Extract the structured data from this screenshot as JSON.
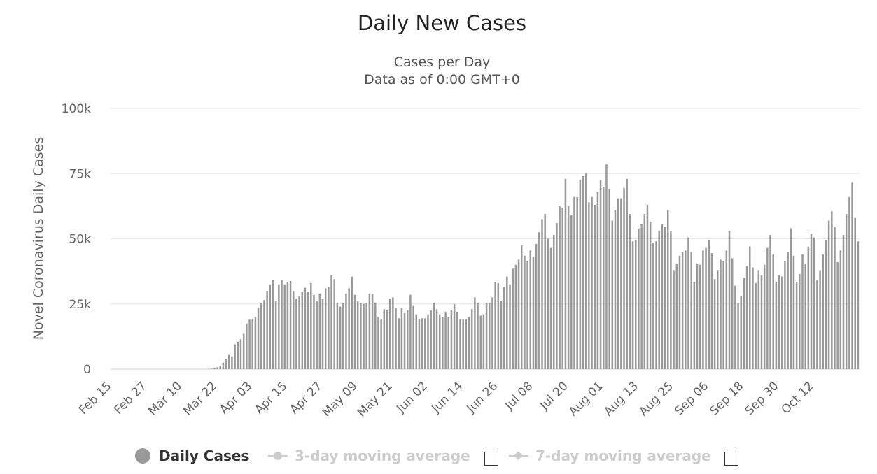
{
  "chart_data": {
    "type": "bar",
    "title": "Daily New Cases",
    "subtitle": [
      "Cases per Day",
      "Data as of 0:00 GMT+0"
    ],
    "ylabel": "Novel Coronavirus Daily Cases",
    "xlabel": "",
    "ylim": [
      0,
      100000
    ],
    "y_ticks": [
      0,
      25000,
      50000,
      75000,
      100000
    ],
    "y_tick_labels": [
      "0",
      "25k",
      "50k",
      "75k",
      "100k"
    ],
    "x_tick_labels": [
      "Feb 15",
      "Feb 27",
      "Mar 10",
      "Mar 22",
      "Apr 03",
      "Apr 15",
      "Apr 27",
      "May 09",
      "May 21",
      "Jun 02",
      "Jun 14",
      "Jun 26",
      "Jul 08",
      "Jul 20",
      "Aug 01",
      "Aug 13",
      "Aug 25",
      "Sep 06",
      "Sep 18",
      "Sep 30",
      "Oct 12"
    ],
    "x_start": "Feb 15",
    "x_end": "Oct 17",
    "grid": true,
    "bar_color": "#999999",
    "series": [
      {
        "name": "Daily Cases",
        "values": [
          0,
          0,
          0,
          0,
          0,
          0,
          0,
          0,
          0,
          0,
          0,
          0,
          0,
          0,
          0,
          0,
          0,
          0,
          0,
          0,
          0,
          0,
          0,
          0,
          0,
          0,
          0,
          0,
          0,
          0,
          0,
          0,
          0,
          100,
          200,
          500,
          700,
          1300,
          2500,
          4000,
          5500,
          4800,
          9500,
          10500,
          11500,
          13500,
          17500,
          19000,
          19000,
          20000,
          23500,
          25500,
          26500,
          30000,
          32500,
          34200,
          26000,
          32500,
          34200,
          32500,
          33500,
          33800,
          30000,
          27000,
          28000,
          29500,
          31200,
          29500,
          33000,
          28500,
          26000,
          29000,
          27000,
          31000,
          31500,
          36000,
          34500,
          25500,
          24000,
          25500,
          29000,
          31000,
          35500,
          28500,
          26000,
          25500,
          25000,
          25500,
          29000,
          28800,
          25500,
          20000,
          19000,
          23000,
          22500,
          27000,
          27500,
          23500,
          19500,
          23500,
          21500,
          22500,
          28500,
          24500,
          21000,
          19000,
          19500,
          19500,
          21000,
          22500,
          25500,
          23000,
          21000,
          20000,
          22000,
          20000,
          22500,
          25000,
          22000,
          19000,
          19000,
          19000,
          20000,
          23000,
          27500,
          25500,
          20500,
          21000,
          25500,
          25500,
          27500,
          33500,
          33000,
          26000,
          31500,
          35500,
          32500,
          38500,
          40000,
          42000,
          47500,
          43500,
          41500,
          45500,
          43000,
          48000,
          52500,
          57500,
          59500,
          50000,
          46500,
          51500,
          56000,
          62500,
          62000,
          73000,
          62500,
          59000,
          66000,
          66000,
          72500,
          74000,
          75000,
          64000,
          66000,
          63000,
          68000,
          72500,
          70000,
          78500,
          69000,
          57000,
          61000,
          65500,
          65500,
          69500,
          73000,
          59500,
          49000,
          49500,
          54000,
          55500,
          59500,
          63000,
          56500,
          48500,
          49000,
          53000,
          55500,
          54500,
          61000,
          53000,
          38000,
          40500,
          43500,
          45000,
          45500,
          50500,
          45000,
          33500,
          40500,
          40000,
          45500,
          46500,
          49500,
          44500,
          34500,
          38000,
          42000,
          41500,
          45500,
          53000,
          42500,
          32000,
          25500,
          28000,
          35000,
          39500,
          47000,
          39000,
          33000,
          38000,
          36000,
          40000,
          46500,
          51500,
          44000,
          33500,
          36000,
          35500,
          41500,
          45000,
          54000,
          43500,
          33500,
          36500,
          44000,
          40500,
          47000,
          52000,
          50500,
          34000,
          38000,
          44000,
          49500,
          57000,
          60500,
          54500,
          41000,
          45500,
          51500,
          59500,
          66000,
          71500,
          58000,
          49000
        ]
      },
      {
        "name": "3-day moving average",
        "visible": false
      },
      {
        "name": "7-day moving average",
        "visible": false
      }
    ]
  }
}
